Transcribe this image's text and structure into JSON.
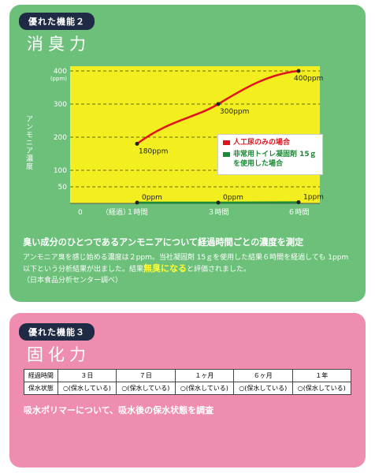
{
  "section1": {
    "label": "優れた機能２",
    "title": "消臭力",
    "chart": {
      "ylabel": "アンモニア濃度",
      "y_unit": "(ppm)",
      "y_ticks": [
        "400",
        "300",
        "200",
        "100",
        "50"
      ],
      "origin_label": "0",
      "x_prefix": "（経過）",
      "x_ticks": [
        "１時間",
        "３時間",
        "６時間"
      ],
      "point_labels": {
        "red": [
          "180ppm",
          "300ppm",
          "400ppm"
        ],
        "green": [
          "0ppm",
          "0ppm",
          "1ppm"
        ]
      },
      "legend": {
        "red": "人工尿のみの場合",
        "green": "非常用トイレ凝固剤 15ｇを使用した場合"
      }
    },
    "heading": "臭い成分のひとつであるアンモニアについて経過時間ごとの濃度を測定",
    "body_prefix": "アンモニア臭を感じ始める濃度は２ppm。当社凝固剤 15ｇを使用した結果６時間を経過しても 1ppm 以下という分析結果が出ました。結果",
    "body_highlight": "無臭になる",
    "body_suffix": "と評価されました。",
    "source": "（日本食品分析センター調べ）"
  },
  "section2": {
    "label": "優れた機能３",
    "title": "固化力",
    "table": {
      "header": [
        "経過時間",
        "３日",
        "７日",
        "１ヶ月",
        "６ヶ月",
        "１年"
      ],
      "row_label": "保水状態",
      "row_values": [
        "○(保水している)",
        "○(保水している)",
        "○(保水している)",
        "○(保水している)",
        "○(保水している)"
      ]
    },
    "note": "吸水ポリマーについて、吸水後の保水状態を調査"
  },
  "colors": {
    "panel1": "#6cc07a",
    "panel2": "#ef8db0",
    "chart_bg": "#f2ee1f",
    "red_line": "#e0141e",
    "green_line": "#1a8c35"
  },
  "chart_data": {
    "type": "line",
    "x": [
      "１時間",
      "３時間",
      "６時間"
    ],
    "series": [
      {
        "name": "人工尿のみの場合",
        "values": [
          180,
          300,
          400
        ]
      },
      {
        "name": "非常用トイレ凝固剤 15ｇを使用した場合",
        "values": [
          0,
          0,
          1
        ]
      }
    ],
    "ylabel": "アンモニア濃度",
    "ylim": [
      0,
      400
    ],
    "grid": true,
    "legend": "middle-right"
  }
}
